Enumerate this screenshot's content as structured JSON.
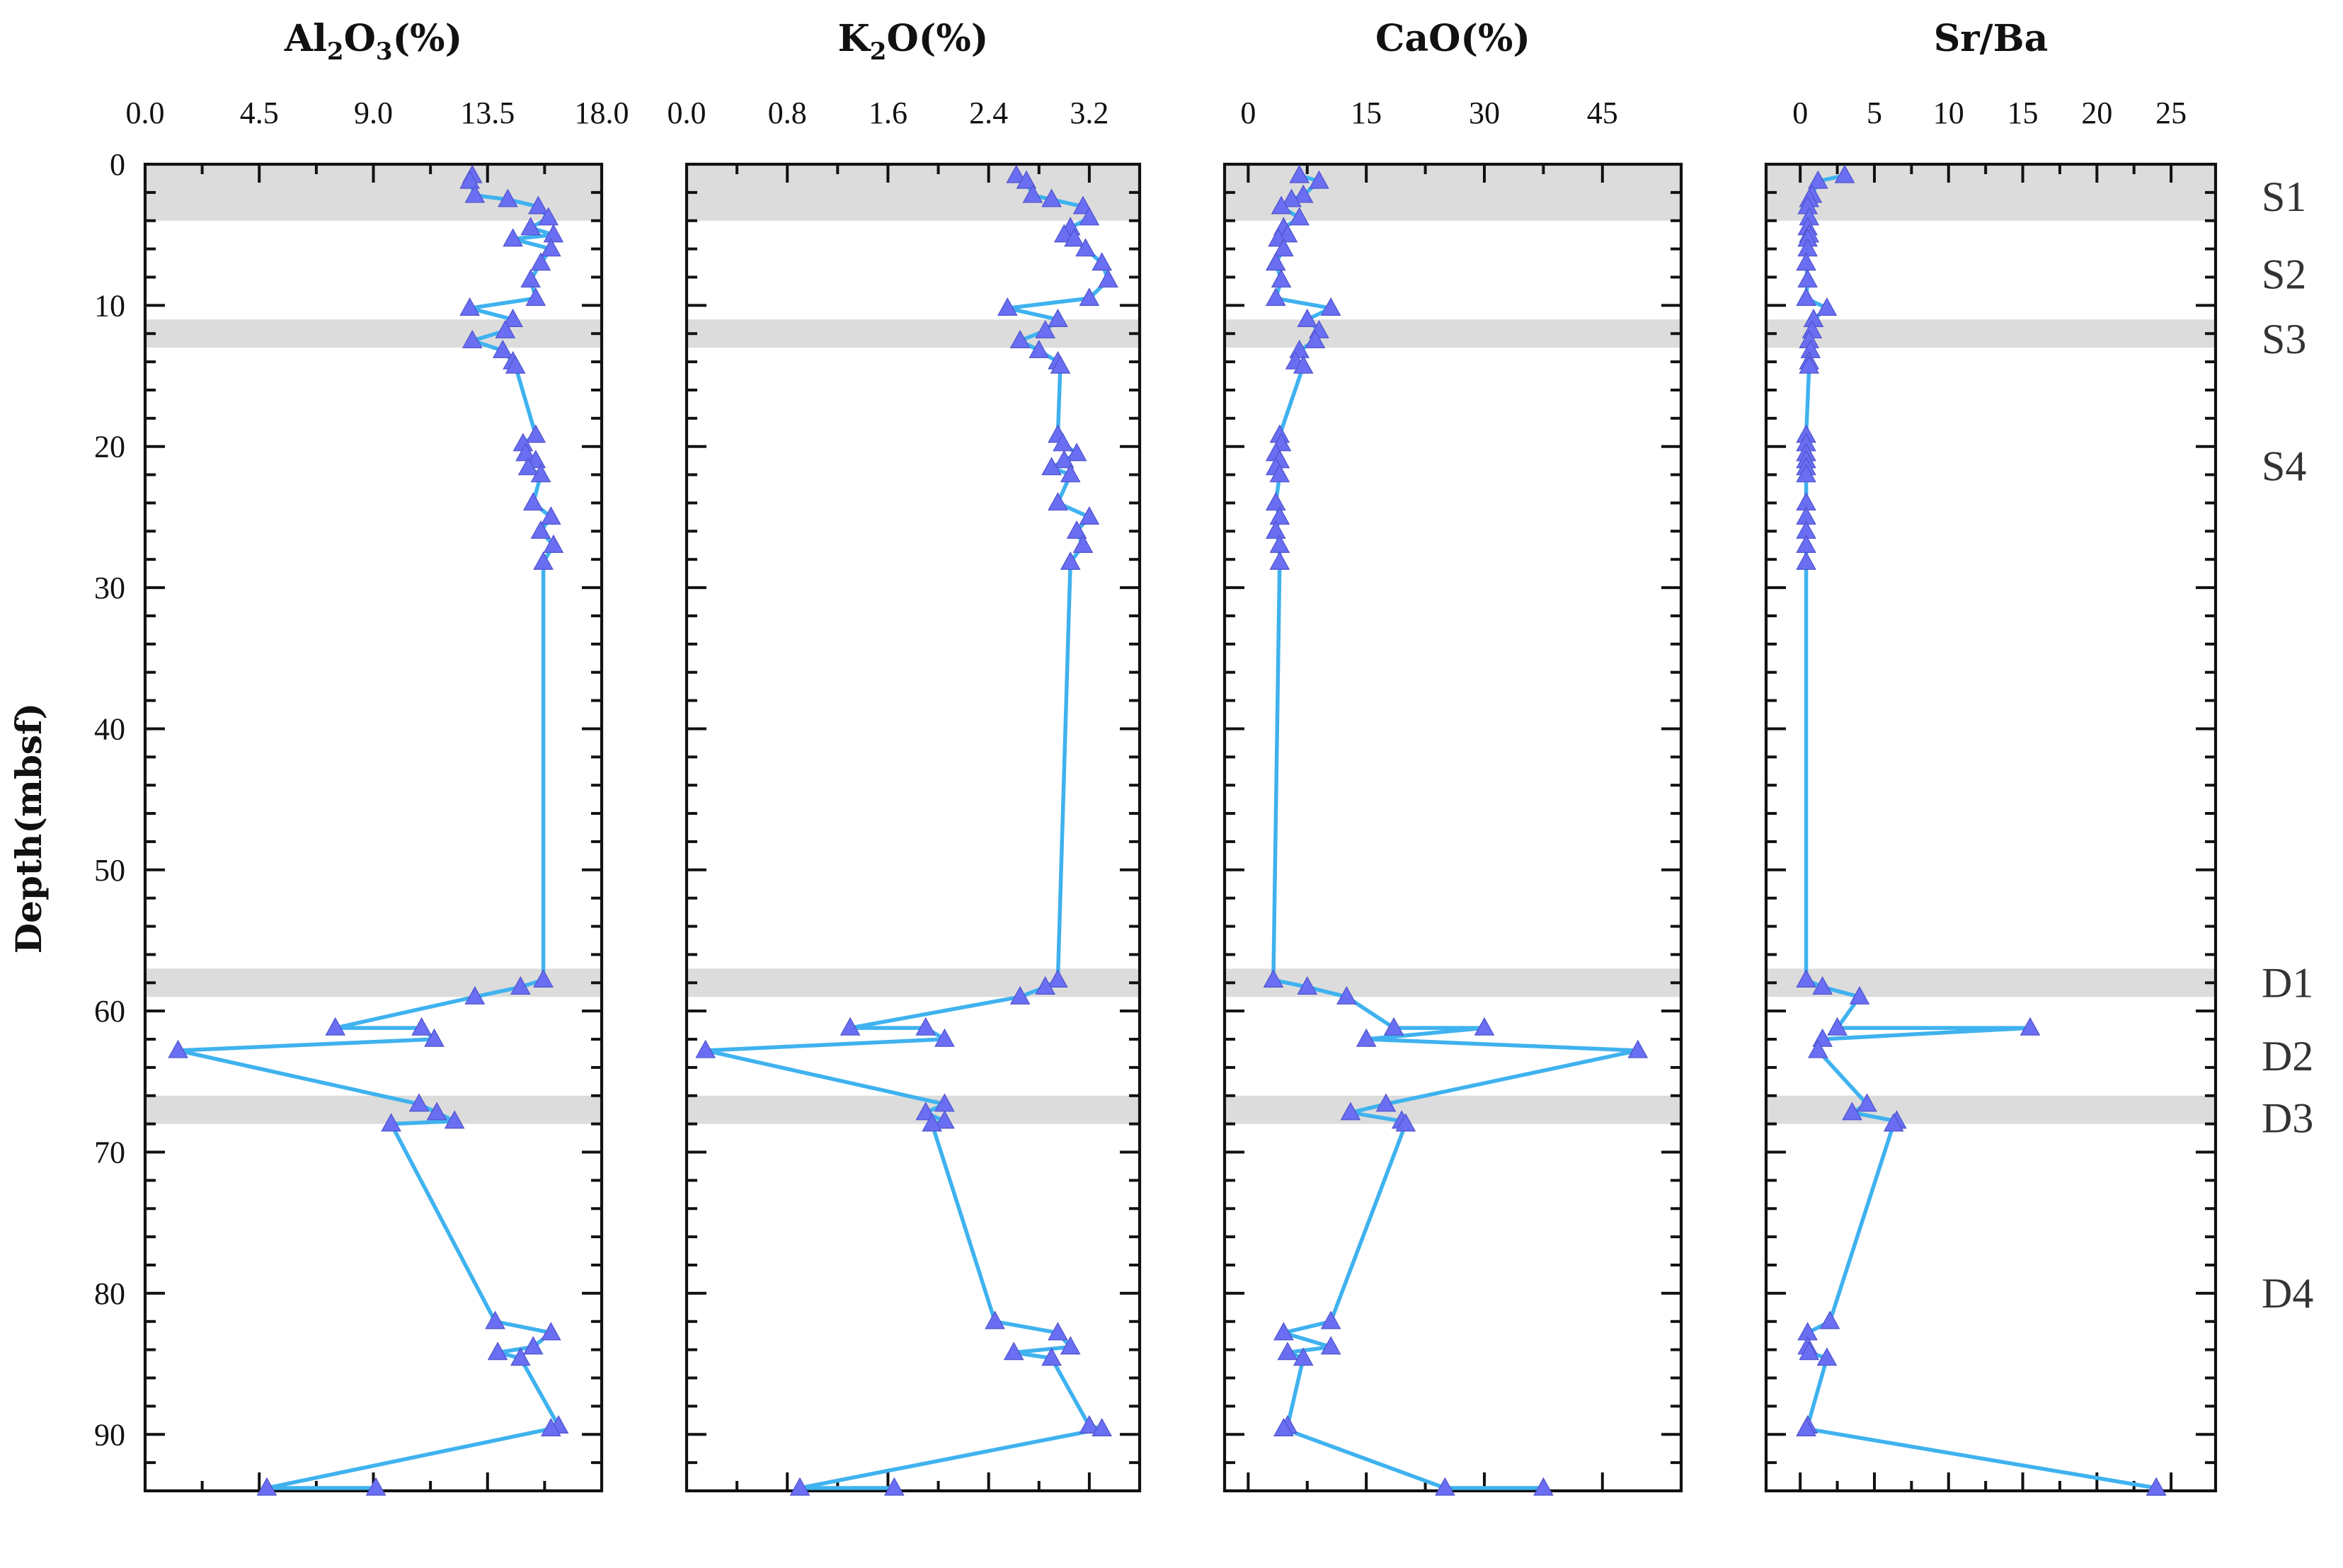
{
  "chart_data": {
    "type": "line",
    "ylabel": "Depth(mbsf)",
    "ylim": [
      0,
      94
    ],
    "yticks": [
      0,
      10,
      20,
      30,
      40,
      50,
      60,
      70,
      80,
      90
    ],
    "depths": [
      0.8,
      1.2,
      2.2,
      2.5,
      3.0,
      3.8,
      4.5,
      5.0,
      5.3,
      6.0,
      7.0,
      8.2,
      9.5,
      10.2,
      11.0,
      11.8,
      12.5,
      13.2,
      14.0,
      14.3,
      19.2,
      19.8,
      20.5,
      21.0,
      21.5,
      22.0,
      24.0,
      25.0,
      26.0,
      27.0,
      28.2,
      57.8,
      58.3,
      59.0,
      61.2,
      61.2,
      62.0,
      62.8,
      66.6,
      67.2,
      67.8,
      68.0,
      82.0,
      82.8,
      83.8,
      84.2,
      84.6,
      89.4,
      89.6,
      93.8,
      93.8
    ],
    "bands": [
      [
        0,
        4
      ],
      [
        11,
        13
      ],
      [
        57,
        59
      ],
      [
        66,
        68
      ]
    ],
    "zones": [
      {
        "label": "S1",
        "depth": 2.3
      },
      {
        "label": "S2",
        "depth": 7.8
      },
      {
        "label": "S3",
        "depth": 12.4
      },
      {
        "label": "S4",
        "depth": 21.4
      },
      {
        "label": "D1",
        "depth": 58.0
      },
      {
        "label": "D2",
        "depth": 63.2
      },
      {
        "label": "D3",
        "depth": 67.6
      },
      {
        "label": "D4",
        "depth": 80.0
      }
    ],
    "panels": [
      {
        "title": "Al",
        "title_sub1": "2",
        "title_mid": "O",
        "title_sub2": "3",
        "title_tail": "(%)",
        "xlim": [
          0,
          18
        ],
        "xticks": [
          0,
          4.5,
          9,
          13.5,
          18
        ],
        "xtick_labels": [
          "0.0",
          "4.5",
          "9.0",
          "13.5",
          "18.0"
        ],
        "series": [
          {
            "name": "Al2O3",
            "values": [
              12.9,
              12.8,
              13.0,
              14.3,
              15.5,
              15.9,
              15.2,
              16.1,
              14.5,
              16.0,
              15.6,
              15.2,
              15.4,
              12.8,
              14.5,
              14.2,
              12.9,
              14.1,
              14.5,
              14.6,
              15.4,
              14.9,
              15.0,
              15.4,
              15.1,
              15.6,
              15.3,
              16.0,
              15.6,
              16.1,
              15.7,
              15.7,
              14.8,
              13.0,
              7.5,
              10.9,
              11.4,
              1.3,
              10.8,
              11.5,
              12.2,
              9.7,
              13.8,
              16.0,
              15.3,
              13.9,
              14.8,
              16.3,
              16.0,
              4.8,
              9.1
            ]
          }
        ]
      },
      {
        "title": "K",
        "title_sub1": "2",
        "title_mid": "O",
        "title_sub2": "",
        "title_tail": "(%)",
        "xlim": [
          0,
          3.6
        ],
        "xticks": [
          0,
          0.8,
          1.6,
          2.4,
          3.2
        ],
        "xtick_labels": [
          "0.0",
          "0.8",
          "1.6",
          "2.4",
          "3.2"
        ],
        "series": [
          {
            "name": "K2O",
            "values": [
              2.62,
              2.7,
              2.75,
              2.9,
              3.15,
              3.2,
              3.05,
              3.0,
              3.08,
              3.17,
              3.3,
              3.35,
              3.2,
              2.55,
              2.95,
              2.85,
              2.65,
              2.8,
              2.95,
              2.97,
              2.95,
              2.99,
              3.1,
              3.0,
              2.9,
              3.05,
              2.95,
              3.2,
              3.1,
              3.15,
              3.05,
              2.95,
              2.85,
              2.65,
              1.3,
              1.9,
              2.05,
              0.15,
              2.05,
              1.9,
              2.05,
              1.95,
              2.45,
              2.95,
              3.05,
              2.6,
              2.9,
              3.2,
              3.3,
              0.9,
              1.65
            ]
          }
        ]
      },
      {
        "title": "CaO(%)",
        "title_sub1": "",
        "title_mid": "",
        "title_sub2": "",
        "title_tail": "",
        "xlim": [
          -3,
          55
        ],
        "xticks": [
          0,
          15,
          30,
          45
        ],
        "xtick_labels": [
          "0",
          "15",
          "30",
          "45"
        ],
        "series": [
          {
            "name": "CaO",
            "values": [
              6.5,
              9.0,
              7.0,
              5.5,
              4.2,
              6.5,
              4.5,
              5.0,
              3.8,
              4.5,
              3.5,
              4.2,
              3.5,
              10.5,
              7.5,
              9.0,
              8.5,
              6.5,
              6.0,
              7.0,
              4.0,
              4.2,
              3.5,
              4.0,
              3.5,
              4.0,
              3.5,
              4.0,
              3.5,
              4.0,
              4.0,
              3.2,
              7.5,
              12.5,
              18.5,
              30.0,
              15.0,
              49.5,
              17.5,
              13.0,
              19.5,
              20.0,
              10.5,
              4.5,
              10.5,
              5.0,
              7.0,
              5.0,
              4.5,
              25.0,
              37.5
            ]
          }
        ]
      },
      {
        "title": "Sr/Ba",
        "title_sub1": "",
        "title_mid": "",
        "title_sub2": "",
        "title_tail": "",
        "xlim": [
          -2.3,
          28
        ],
        "xticks": [
          0,
          5,
          10,
          15,
          20,
          25
        ],
        "xtick_labels": [
          "0",
          "5",
          "10",
          "15",
          "20",
          "25"
        ],
        "series": [
          {
            "name": "Sr/Ba",
            "values": [
              3.0,
              1.2,
              0.8,
              0.6,
              0.5,
              0.6,
              0.5,
              0.6,
              0.5,
              0.5,
              0.4,
              0.5,
              0.4,
              1.8,
              0.9,
              0.8,
              0.6,
              0.7,
              0.6,
              0.6,
              0.4,
              0.4,
              0.4,
              0.4,
              0.4,
              0.4,
              0.4,
              0.4,
              0.4,
              0.4,
              0.4,
              0.4,
              1.5,
              4.0,
              2.5,
              15.5,
              1.5,
              1.2,
              4.5,
              3.5,
              6.5,
              6.3,
              2.0,
              0.5,
              0.5,
              0.6,
              1.8,
              0.5,
              0.4,
              24.0,
              24.0
            ]
          }
        ]
      }
    ]
  }
}
